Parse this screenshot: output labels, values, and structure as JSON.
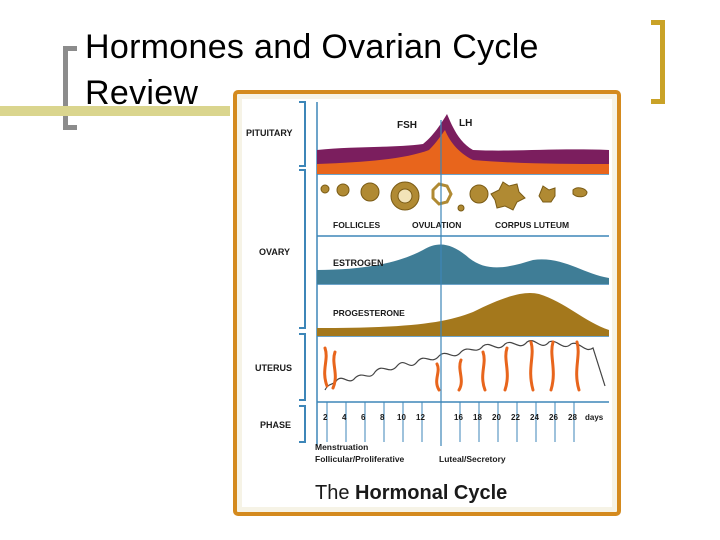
{
  "slide": {
    "title_line1": "Hormones and Ovarian Cycle",
    "title_line2": "Review"
  },
  "figure": {
    "title_prefix": "The",
    "title_main": "Hormonal Cycle",
    "sections": {
      "pituitary": "PITUITARY",
      "ovary": "OVARY",
      "uterus": "UTERUS",
      "phase": "PHASE"
    },
    "hormones": {
      "fsh": "FSH",
      "lh": "LH",
      "estrogen": "ESTROGEN",
      "progesterone": "PROGESTERONE"
    },
    "follicle_labels": [
      "FOLLICLES",
      "OVULATION",
      "CORPUS LUTEUM"
    ],
    "days": [
      "2",
      "4",
      "6",
      "8",
      "10",
      "12",
      "16",
      "18",
      "20",
      "22",
      "24",
      "26",
      "28"
    ],
    "days_unit": "days",
    "phase_labels": {
      "menstruation": "Menstruation",
      "follicular": "Follicular/Proliferative",
      "luteal": "Luteal/Secretory"
    },
    "colors": {
      "frame": "#d48a1e",
      "panel": "#ffffff",
      "lh": "#7b1e5e",
      "fsh": "#e8651c",
      "estrogen": "#3f7d96",
      "progesterone": "#a4781c",
      "follicle": "#b08a33",
      "uterus_vessels": "#e8651c",
      "lines": "#3d86b8"
    }
  }
}
